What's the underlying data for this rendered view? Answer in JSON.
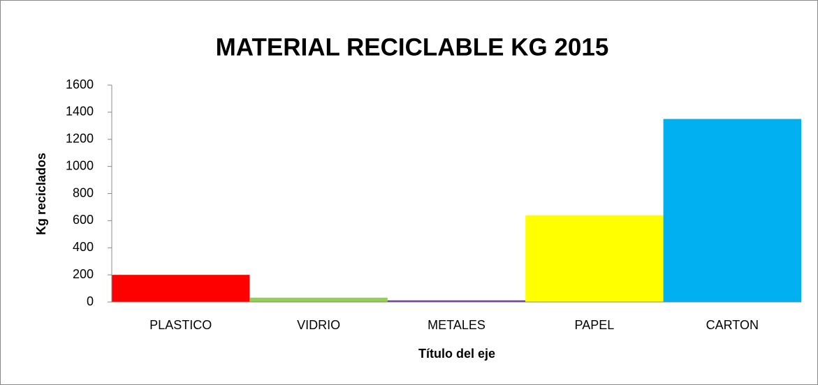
{
  "chart_data": {
    "type": "bar",
    "title": "MATERIAL RECICLABLE KG 2015",
    "x_label": "Título del eje",
    "y_label": "Kg reciclados",
    "categories": [
      "PLASTICO",
      "VIDRIO",
      "METALES",
      "PAPEL",
      "CARTON"
    ],
    "values": [
      200,
      32,
      12,
      640,
      1350
    ],
    "colors": [
      "#ff0000",
      "#92d050",
      "#7030a0",
      "#ffff00",
      "#00b0f0"
    ],
    "ylim": [
      0,
      1600
    ],
    "yticks": [
      0,
      200,
      400,
      600,
      800,
      1000,
      1200,
      1400,
      1600
    ],
    "grid": false
  }
}
